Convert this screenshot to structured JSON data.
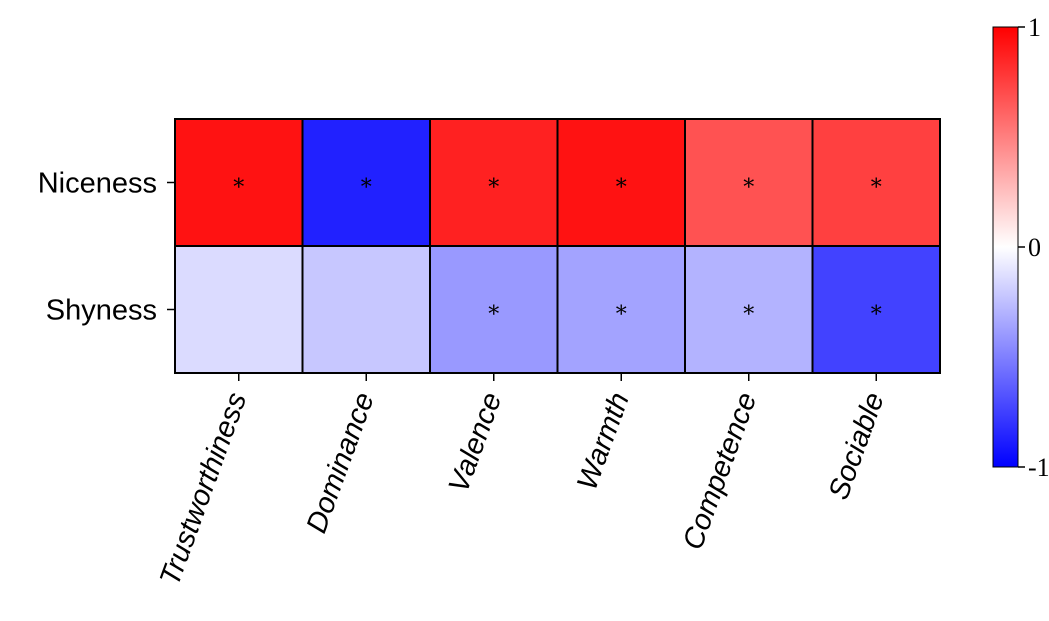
{
  "chart_data": {
    "type": "heatmap",
    "title": "",
    "xlabel": "",
    "ylabel": "",
    "rows": [
      "Niceness",
      "Shyness"
    ],
    "columns": [
      "Trustworthiness",
      "Dominance",
      "Valence",
      "Warmth",
      "Competence",
      "Sociable"
    ],
    "values": [
      [
        0.93,
        -0.87,
        0.87,
        0.93,
        0.68,
        0.75
      ],
      [
        -0.14,
        -0.22,
        -0.4,
        -0.36,
        -0.3,
        -0.74
      ]
    ],
    "significance_marker": "*",
    "significant": [
      [
        true,
        true,
        true,
        true,
        true,
        true
      ],
      [
        false,
        false,
        true,
        true,
        true,
        true
      ]
    ],
    "colormap": "bwr",
    "colors": {
      "negative": "#0000ff",
      "zero": "#ffffff",
      "positive": "#ff0000"
    },
    "colorbar": {
      "range": [
        -1,
        1
      ],
      "ticks": [
        1,
        0,
        -1
      ],
      "tick_labels": [
        "1",
        "0",
        "-1"
      ]
    }
  }
}
